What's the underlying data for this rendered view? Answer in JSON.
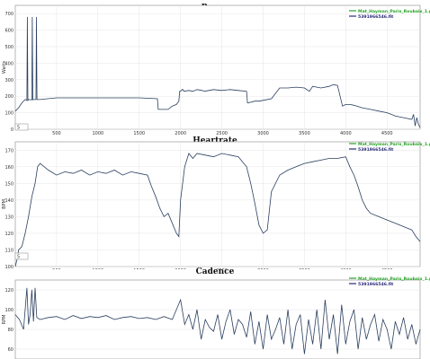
{
  "colors": {
    "green": "#27a327",
    "navy": "#2a2a7a",
    "line": "#2a3f5f",
    "grid": "#e6e6e6",
    "axis": "#888888"
  },
  "chart_data": [
    {
      "type": "line",
      "title": "Power",
      "ylabel": "Watts",
      "legend": [
        "Mat_Hayman_Paris_Roubaix_1.gpx",
        "5391966546.fit"
      ],
      "legend_position": "top-right",
      "zoom_box_label": "5",
      "xlim": [
        0,
        4900
      ],
      "ylim": [
        0,
        750
      ],
      "xticks": [
        500,
        1000,
        1500,
        2000,
        2500,
        3000,
        3500,
        4000,
        4500
      ],
      "yticks": [
        0,
        100,
        200,
        300,
        400,
        500,
        600,
        700
      ],
      "grid": true,
      "series": [
        {
          "name": "Mat_Hayman_Paris_Roubaix_1.gpx",
          "x": [
            0,
            4900
          ],
          "y": [
            null,
            null
          ]
        },
        {
          "name": "5391966546.fit",
          "x": [
            0,
            40,
            80,
            120,
            140,
            146,
            152,
            160,
            200,
            206,
            212,
            220,
            250,
            256,
            262,
            270,
            300,
            500,
            1000,
            1500,
            1720,
            1730,
            1850,
            1900,
            1950,
            1980,
            1990,
            2000,
            2020,
            2030,
            2040,
            2100,
            2150,
            2200,
            2260,
            2290,
            2400,
            2500,
            2600,
            2700,
            2800,
            2810,
            2820,
            2900,
            2950,
            3000,
            3100,
            3200,
            3300,
            3400,
            3500,
            3560,
            3600,
            3650,
            3700,
            3800,
            3850,
            3900,
            3960,
            4000,
            4050,
            4100,
            4200,
            4300,
            4400,
            4500,
            4550,
            4600,
            4700,
            4800,
            4820,
            4840,
            4860,
            4880,
            4900
          ],
          "y": [
            110,
            130,
            160,
            180,
            175,
            680,
            175,
            180,
            178,
            680,
            178,
            180,
            180,
            680,
            180,
            180,
            180,
            190,
            190,
            190,
            185,
            120,
            120,
            140,
            150,
            170,
            230,
            230,
            240,
            240,
            230,
            235,
            230,
            240,
            235,
            230,
            240,
            235,
            240,
            235,
            230,
            160,
            160,
            170,
            170,
            175,
            185,
            250,
            250,
            255,
            250,
            230,
            260,
            255,
            250,
            260,
            270,
            265,
            140,
            150,
            150,
            145,
            130,
            120,
            110,
            100,
            90,
            80,
            70,
            60,
            90,
            20,
            70,
            30,
            10
          ]
        }
      ]
    },
    {
      "type": "line",
      "title": "Heartrate",
      "ylabel": "BPM",
      "legend": [
        "Mat_Hayman_Paris_Roubaix_1.gpx",
        "5391966546.fit"
      ],
      "legend_position": "top-right",
      "zoom_box_label": "5",
      "xlim": [
        0,
        4900
      ],
      "ylim": [
        100,
        175
      ],
      "xticks": [
        500,
        1000,
        1500,
        2000,
        2500,
        3000,
        3500,
        4000,
        4500
      ],
      "yticks": [
        100,
        110,
        120,
        130,
        140,
        150,
        160,
        170
      ],
      "grid": true,
      "series": [
        {
          "name": "Mat_Hayman_Paris_Roubaix_1.gpx",
          "x": [
            0,
            4900
          ],
          "y": [
            null,
            null
          ]
        },
        {
          "name": "5391966546.fit",
          "x": [
            0,
            20,
            40,
            80,
            120,
            160,
            200,
            240,
            270,
            300,
            400,
            500,
            600,
            700,
            800,
            900,
            1000,
            1100,
            1200,
            1300,
            1400,
            1500,
            1600,
            1650,
            1700,
            1750,
            1800,
            1850,
            1900,
            1950,
            1980,
            2000,
            2050,
            2100,
            2150,
            2200,
            2300,
            2400,
            2500,
            2600,
            2700,
            2800,
            2850,
            2900,
            2950,
            3000,
            3050,
            3100,
            3200,
            3300,
            3400,
            3500,
            3600,
            3700,
            3800,
            3900,
            4000,
            4050,
            4100,
            4150,
            4200,
            4250,
            4300,
            4400,
            4500,
            4600,
            4700,
            4800,
            4850,
            4900
          ],
          "y": [
            100,
            104,
            110,
            112,
            120,
            130,
            142,
            150,
            160,
            162,
            158,
            155,
            157,
            156,
            158,
            155,
            157,
            156,
            158,
            155,
            157,
            156,
            155,
            148,
            142,
            135,
            130,
            132,
            126,
            120,
            118,
            140,
            160,
            168,
            165,
            168,
            167,
            166,
            168,
            167,
            166,
            160,
            150,
            138,
            125,
            120,
            122,
            145,
            155,
            158,
            160,
            162,
            163,
            164,
            165,
            165,
            166,
            160,
            155,
            148,
            140,
            135,
            132,
            130,
            128,
            126,
            124,
            122,
            118,
            115
          ]
        }
      ]
    },
    {
      "type": "line",
      "title": "Cadence",
      "ylabel": "RPM",
      "legend": [
        "Mat_Hayman_Paris_Roubaix_1.gpx",
        "5391966546.fit"
      ],
      "legend_position": "top-right",
      "xlim": [
        0,
        4900
      ],
      "ylim": [
        50,
        130
      ],
      "yticks": [
        60,
        80,
        100,
        120
      ],
      "grid": true,
      "series": [
        {
          "name": "Mat_Hayman_Paris_Roubaix_1.gpx",
          "x": [
            0,
            4900
          ],
          "y": [
            null,
            null
          ]
        },
        {
          "name": "5391966546.fit",
          "x": [
            0,
            50,
            100,
            140,
            160,
            180,
            200,
            220,
            240,
            260,
            300,
            400,
            500,
            600,
            700,
            800,
            900,
            1000,
            1100,
            1200,
            1300,
            1400,
            1500,
            1600,
            1700,
            1800,
            1900,
            2000,
            2050,
            2100,
            2150,
            2200,
            2250,
            2300,
            2350,
            2400,
            2450,
            2500,
            2550,
            2600,
            2650,
            2700,
            2750,
            2800,
            2850,
            2900,
            2950,
            3000,
            3050,
            3100,
            3150,
            3200,
            3250,
            3300,
            3350,
            3400,
            3450,
            3500,
            3550,
            3600,
            3650,
            3700,
            3750,
            3800,
            3850,
            3900,
            3950,
            4000,
            4050,
            4100,
            4150,
            4200,
            4250,
            4300,
            4350,
            4400,
            4450,
            4500,
            4550,
            4600,
            4650,
            4700,
            4750,
            4800,
            4850,
            4900
          ],
          "y": [
            95,
            90,
            80,
            122,
            85,
            95,
            120,
            88,
            122,
            92,
            90,
            92,
            93,
            90,
            94,
            91,
            93,
            92,
            94,
            90,
            92,
            93,
            91,
            92,
            90,
            93,
            90,
            110,
            85,
            95,
            80,
            100,
            70,
            90,
            82,
            78,
            95,
            70,
            88,
            100,
            75,
            90,
            85,
            72,
            98,
            65,
            88,
            60,
            95,
            70,
            80,
            92,
            65,
            100,
            60,
            85,
            95,
            55,
            90,
            65,
            100,
            60,
            110,
            70,
            95,
            55,
            105,
            65,
            88,
            100,
            60,
            92,
            70,
            85,
            95,
            68,
            90,
            80,
            60,
            88,
            75,
            92,
            70,
            85,
            65,
            80
          ]
        }
      ]
    }
  ]
}
